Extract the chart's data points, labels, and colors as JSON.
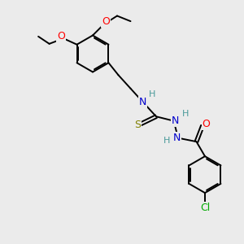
{
  "bg_color": "#ebebeb",
  "bond_color": "#000000",
  "bond_width": 1.4,
  "atoms": {
    "O_color": "#ff0000",
    "N_color": "#0000cd",
    "S_color": "#808000",
    "Cl_color": "#00aa00",
    "H_color": "#4a9a9a"
  },
  "figsize": [
    3.0,
    3.0
  ],
  "dpi": 100,
  "xlim": [
    0,
    10
  ],
  "ylim": [
    0,
    10
  ]
}
